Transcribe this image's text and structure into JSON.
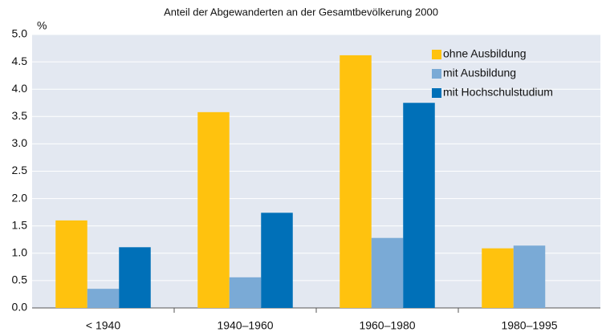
{
  "chart_data": {
    "type": "bar",
    "title": "Anteil der Abgewanderten an der Gesamtbevölkerung 2000",
    "y_label": "%",
    "categories": [
      "< 1940",
      "1940–1960",
      "1960–1980",
      "1980–1995"
    ],
    "series": [
      {
        "name": "ohne Ausbildung",
        "color": "#ffc20e",
        "values": [
          1.6,
          3.58,
          4.62,
          1.09
        ]
      },
      {
        "name": "mit Ausbildung",
        "color": "#7aaad6",
        "values": [
          0.35,
          0.56,
          1.28,
          1.14
        ]
      },
      {
        "name": "mit Hochschulstudium",
        "color": "#0070b8",
        "values": [
          1.11,
          1.74,
          3.75,
          null
        ]
      }
    ],
    "ylim": [
      0,
      5
    ],
    "yticks": [
      {
        "value": 0,
        "label": "0.0"
      },
      0.5,
      {
        "value": 1,
        "label": "1.0"
      },
      1.5,
      {
        "value": 2,
        "label": "2.0"
      },
      2.5,
      {
        "value": 3,
        "label": "3.0"
      },
      3.5,
      {
        "value": 4,
        "label": "4.0"
      },
      4.5,
      {
        "value": 5,
        "label": "5.0"
      }
    ],
    "grid": true,
    "legend": "top-right"
  }
}
